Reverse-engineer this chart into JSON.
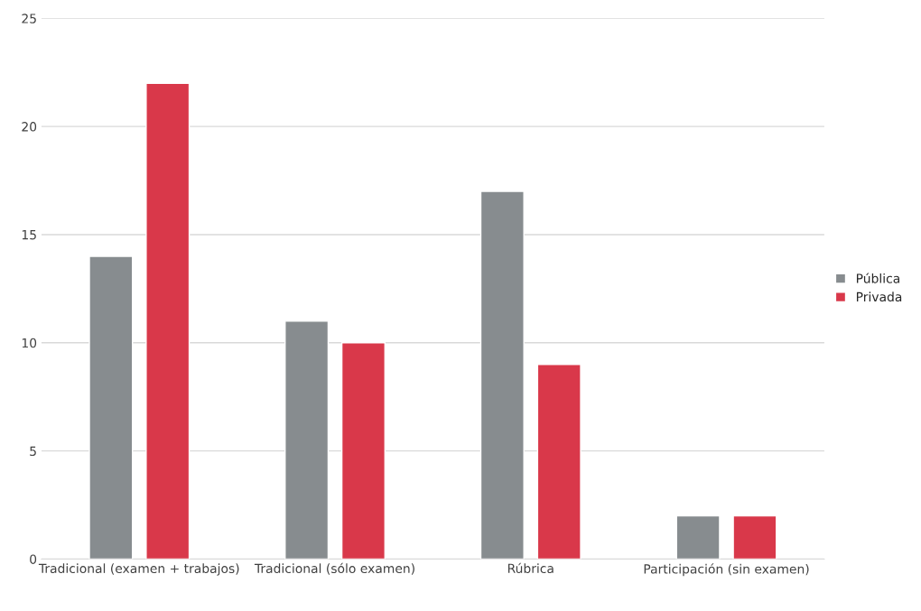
{
  "chart_data": {
    "type": "bar",
    "categories": [
      "Tradicional (examen + trabajos)",
      "Tradicional (sólo examen)",
      "Rúbrica",
      "Participación (sin examen)"
    ],
    "series": [
      {
        "name": "Pública",
        "color": "#878c8f",
        "values": [
          14,
          11,
          17,
          2
        ]
      },
      {
        "name": "Privada",
        "color": "#d9384a",
        "values": [
          22,
          10,
          9,
          2
        ]
      }
    ],
    "ylim": [
      0,
      25
    ],
    "yticks": [
      0,
      5,
      10,
      15,
      20,
      25
    ],
    "grid": "y",
    "legend": "right"
  }
}
